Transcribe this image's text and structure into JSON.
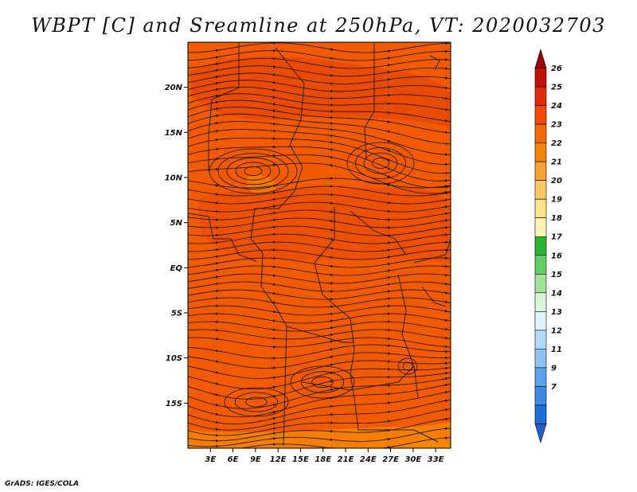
{
  "title": "WBPT [C] and Sreamline at 250hPa, VT: 2020032703",
  "credit": "GrADS: IGES/COLA",
  "map": {
    "variable": "Wet-bulb potential temperature",
    "units": "C",
    "level": "250hPa",
    "valid_time": "2020032703",
    "lon_range": [
      0,
      35
    ],
    "lat_range": [
      -20,
      25
    ],
    "lat_labels": [
      {
        "value": 20,
        "text": "20N"
      },
      {
        "value": 15,
        "text": "15N"
      },
      {
        "value": 10,
        "text": "10N"
      },
      {
        "value": 5,
        "text": "5N"
      },
      {
        "value": 0,
        "text": "EQ"
      },
      {
        "value": -5,
        "text": "5S"
      },
      {
        "value": -10,
        "text": "10S"
      },
      {
        "value": -15,
        "text": "15S"
      }
    ],
    "lon_labels": [
      {
        "value": 3,
        "text": "3E"
      },
      {
        "value": 6,
        "text": "6E"
      },
      {
        "value": 9,
        "text": "9E"
      },
      {
        "value": 12,
        "text": "12E"
      },
      {
        "value": 15,
        "text": "15E"
      },
      {
        "value": 18,
        "text": "18E"
      },
      {
        "value": 21,
        "text": "21E"
      },
      {
        "value": 24,
        "text": "24E"
      },
      {
        "value": 27,
        "text": "27E"
      },
      {
        "value": 30,
        "text": "30E"
      },
      {
        "value": 33,
        "text": "33E"
      }
    ],
    "field_color": "#f25a00",
    "patch_colors": [
      "#e23f00",
      "#f58a00"
    ],
    "streamline_color": "#111111"
  },
  "colorbar": {
    "labels": [
      "26",
      "25",
      "24",
      "23",
      "22",
      "21",
      "20",
      "19",
      "18",
      "17",
      "16",
      "15",
      "14",
      "13",
      "12",
      "11",
      "9",
      "7"
    ],
    "colors": [
      "#a50000",
      "#c41000",
      "#e22a00",
      "#f24b00",
      "#f26a00",
      "#f68600",
      "#f9a232",
      "#fbc864",
      "#fde28c",
      "#fff5b4",
      "#2ab533",
      "#63d063",
      "#a0e39a",
      "#dcf5d5",
      "#e3f2ff",
      "#b3daff",
      "#8ec2f7",
      "#5aa5ee",
      "#3c8ae4",
      "#1d6fd8",
      "#1f5fd0"
    ]
  }
}
